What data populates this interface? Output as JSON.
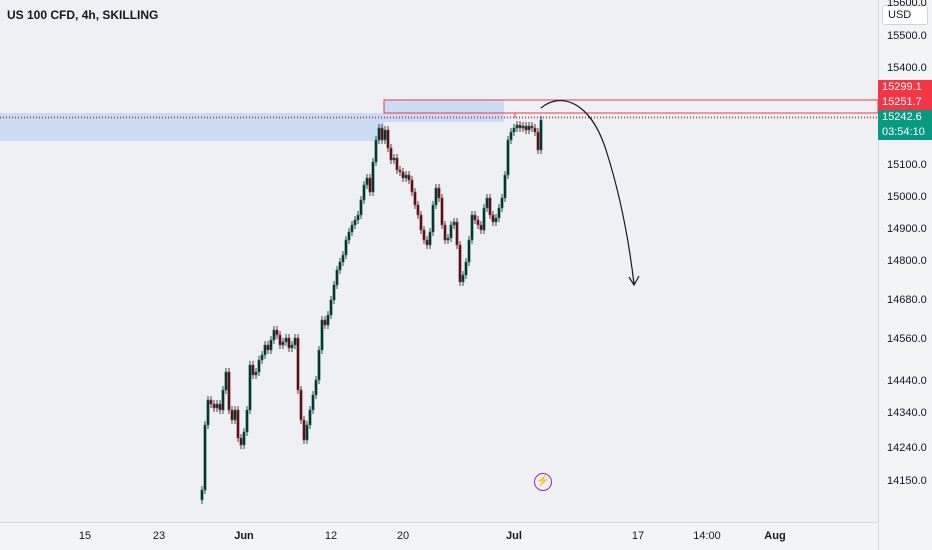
{
  "header": {
    "symbol_title": "US 100 CFD, 4h, SKILLING",
    "currency": "USD"
  },
  "price_axis": {
    "ticks": [
      "15600.0",
      "15500.0",
      "15400.0",
      "15100.0",
      "15000.0",
      "14900.0",
      "14800.0",
      "14680.0",
      "14560.0",
      "14440.0",
      "14340.0",
      "14240.0",
      "14150.0"
    ]
  },
  "time_axis": {
    "ticks": [
      {
        "label": "15",
        "bold": false
      },
      {
        "label": "23",
        "bold": false
      },
      {
        "label": "Jun",
        "bold": true
      },
      {
        "label": "12",
        "bold": false
      },
      {
        "label": "20",
        "bold": false
      },
      {
        "label": "Jul",
        "bold": true
      },
      {
        "label": "17",
        "bold": false
      },
      {
        "label": "14:00",
        "bold": false
      },
      {
        "label": "Aug",
        "bold": true
      }
    ]
  },
  "price_flags": {
    "stop_level": "15299.1",
    "entry_level": "15251.7",
    "last_price": "15242.6",
    "bar_countdown": "03:54:10"
  },
  "colors": {
    "up_candle": "#089981",
    "down_candle": "#f23645",
    "wick": "#131722",
    "zone_fill": "#c9d9f5",
    "stop_zone_border": "#f23645",
    "projection_arrow": "#131722",
    "snapshot_icon": "#9c27b0"
  },
  "icons": {
    "snapshot": "lightning-bolt-icon"
  }
}
